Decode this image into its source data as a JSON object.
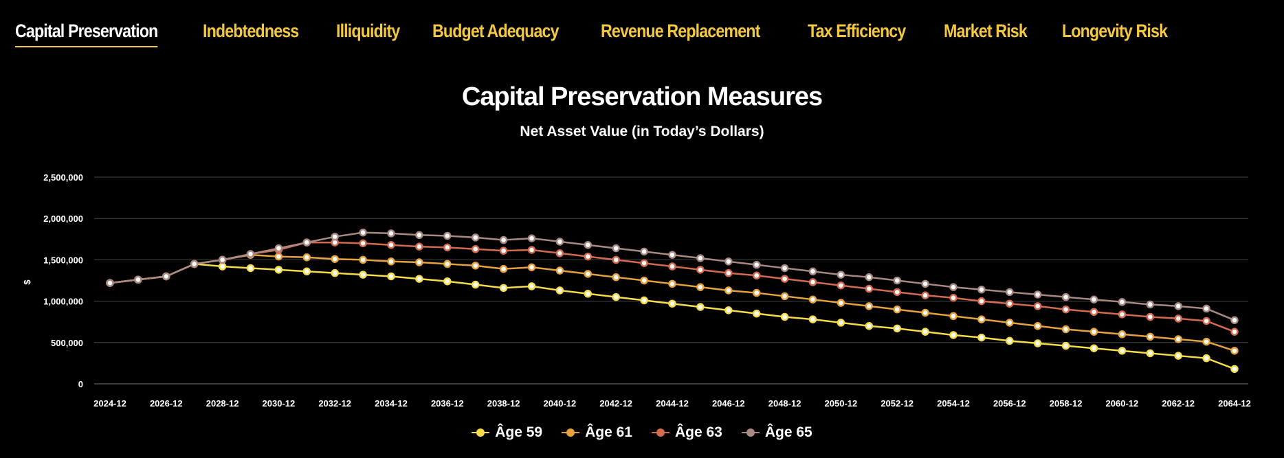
{
  "tabs": [
    {
      "label": "Capital Preservation",
      "active": true
    },
    {
      "label": "Indebtedness",
      "active": false
    },
    {
      "label": "Illiquidity",
      "active": false
    },
    {
      "label": "Budget Adequacy",
      "active": false
    },
    {
      "label": "Revenue Replacement",
      "active": false
    },
    {
      "label": "Tax Efficiency",
      "active": false
    },
    {
      "label": "Market Risk",
      "active": false
    },
    {
      "label": "Longevity Risk",
      "active": false
    }
  ],
  "chart_data": {
    "type": "line",
    "title": "Capital Preservation Measures",
    "subtitle": "Net Asset Value (in Today’s Dollars)",
    "ylabel": "$",
    "xlabel": "",
    "ylim": [
      0,
      2500000
    ],
    "yticks": [
      0,
      500000,
      1000000,
      1500000,
      2000000,
      2500000
    ],
    "ytick_labels": [
      "0",
      "500,000",
      "1,000,000",
      "1,500,000",
      "2,000,000",
      "2,500,000"
    ],
    "x": [
      "2024-12",
      "2025-12",
      "2026-12",
      "2027-12",
      "2028-12",
      "2029-12",
      "2030-12",
      "2031-12",
      "2032-12",
      "2033-12",
      "2034-12",
      "2035-12",
      "2036-12",
      "2037-12",
      "2038-12",
      "2039-12",
      "2040-12",
      "2041-12",
      "2042-12",
      "2043-12",
      "2044-12",
      "2045-12",
      "2046-12",
      "2047-12",
      "2048-12",
      "2049-12",
      "2050-12",
      "2051-12",
      "2052-12",
      "2053-12",
      "2054-12",
      "2055-12",
      "2056-12",
      "2057-12",
      "2058-12",
      "2059-12",
      "2060-12",
      "2061-12",
      "2062-12",
      "2063-12",
      "2064-12"
    ],
    "xtick_labels": [
      "2024-12",
      "2026-12",
      "2028-12",
      "2030-12",
      "2032-12",
      "2034-12",
      "2036-12",
      "2038-12",
      "2040-12",
      "2042-12",
      "2044-12",
      "2046-12",
      "2048-12",
      "2050-12",
      "2052-12",
      "2054-12",
      "2056-12",
      "2058-12",
      "2060-12",
      "2062-12",
      "2064-12"
    ],
    "grid": true,
    "legend_position": "bottom-center",
    "series": [
      {
        "name": "Âge 59",
        "color": "#f6dc4a",
        "values": [
          1220000,
          1260000,
          1300000,
          1450000,
          1420000,
          1400000,
          1380000,
          1360000,
          1340000,
          1320000,
          1300000,
          1270000,
          1240000,
          1200000,
          1160000,
          1180000,
          1130000,
          1090000,
          1050000,
          1010000,
          970000,
          930000,
          890000,
          850000,
          810000,
          780000,
          740000,
          700000,
          670000,
          630000,
          590000,
          560000,
          520000,
          490000,
          460000,
          430000,
          400000,
          370000,
          340000,
          310000,
          180000
        ]
      },
      {
        "name": "Âge 61",
        "color": "#e6a23c",
        "values": [
          1220000,
          1260000,
          1300000,
          1450000,
          1500000,
          1560000,
          1540000,
          1530000,
          1510000,
          1500000,
          1480000,
          1470000,
          1450000,
          1430000,
          1390000,
          1410000,
          1370000,
          1330000,
          1290000,
          1250000,
          1210000,
          1170000,
          1130000,
          1100000,
          1060000,
          1020000,
          980000,
          940000,
          900000,
          860000,
          820000,
          780000,
          740000,
          700000,
          660000,
          630000,
          600000,
          570000,
          540000,
          510000,
          400000
        ]
      },
      {
        "name": "Âge 63",
        "color": "#d46a4f",
        "values": [
          1220000,
          1260000,
          1300000,
          1450000,
          1500000,
          1570000,
          1620000,
          1710000,
          1710000,
          1700000,
          1680000,
          1660000,
          1650000,
          1630000,
          1610000,
          1620000,
          1580000,
          1540000,
          1500000,
          1460000,
          1420000,
          1380000,
          1340000,
          1310000,
          1270000,
          1230000,
          1190000,
          1150000,
          1110000,
          1070000,
          1040000,
          1000000,
          970000,
          940000,
          900000,
          870000,
          840000,
          810000,
          790000,
          760000,
          630000
        ]
      },
      {
        "name": "Âge 65",
        "color": "#a88a82",
        "values": [
          1220000,
          1260000,
          1300000,
          1450000,
          1500000,
          1570000,
          1640000,
          1710000,
          1780000,
          1830000,
          1820000,
          1800000,
          1790000,
          1770000,
          1740000,
          1760000,
          1720000,
          1680000,
          1640000,
          1600000,
          1560000,
          1520000,
          1480000,
          1440000,
          1400000,
          1360000,
          1320000,
          1290000,
          1250000,
          1210000,
          1170000,
          1140000,
          1110000,
          1080000,
          1050000,
          1020000,
          990000,
          960000,
          940000,
          910000,
          770000
        ]
      }
    ]
  }
}
